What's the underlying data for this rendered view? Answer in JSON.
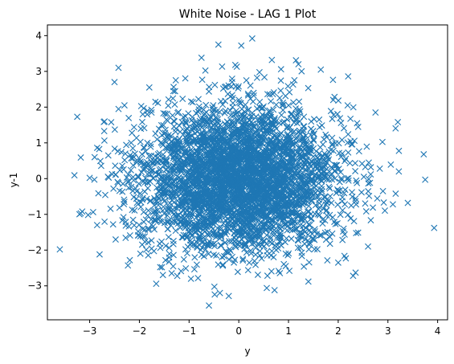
{
  "chart_data": {
    "type": "scatter",
    "title": "White Noise - LAG 1 Plot",
    "xlabel": "y",
    "ylabel": "y-1",
    "xlim": [
      -3.85,
      4.2
    ],
    "ylim": [
      -3.95,
      4.3
    ],
    "x_ticks": [
      -3,
      -2,
      -1,
      0,
      1,
      2,
      3,
      4
    ],
    "y_ticks": [
      -3,
      -2,
      -1,
      0,
      1,
      2,
      3,
      4
    ],
    "grid": false,
    "marker": "x",
    "color": "#1f77b4",
    "series": [
      {
        "distribution": "standard-normal white noise, lag-1 pairs",
        "n_points": 4000,
        "outliers": [
          {
            "x": 0.27,
            "y": 3.92
          },
          {
            "x": -0.41,
            "y": 3.75
          },
          {
            "x": 0.05,
            "y": 3.72
          },
          {
            "x": -2.42,
            "y": 3.1
          },
          {
            "x": -0.75,
            "y": 3.38
          },
          {
            "x": 1.15,
            "y": 3.31
          },
          {
            "x": 1.2,
            "y": 3.2
          },
          {
            "x": -0.07,
            "y": 3.18
          },
          {
            "x": -0.04,
            "y": 3.13
          },
          {
            "x": 0.85,
            "y": 3.06
          },
          {
            "x": -2.5,
            "y": 2.7
          },
          {
            "x": 2.2,
            "y": 2.86
          },
          {
            "x": -3.25,
            "y": 1.73
          },
          {
            "x": -2.3,
            "y": 2.05
          },
          {
            "x": 3.72,
            "y": 0.68
          },
          {
            "x": 3.75,
            "y": -0.03
          },
          {
            "x": 3.1,
            "y": -0.72
          },
          {
            "x": 3.4,
            "y": -0.68
          },
          {
            "x": 3.93,
            "y": -1.38
          },
          {
            "x": -3.6,
            "y": -1.98
          },
          {
            "x": -3.15,
            "y": -0.92
          },
          {
            "x": -3.18,
            "y": -0.97
          },
          {
            "x": -2.8,
            "y": -2.12
          },
          {
            "x": -2.23,
            "y": -2.43
          },
          {
            "x": -0.6,
            "y": -3.55
          },
          {
            "x": 0.72,
            "y": -3.12
          },
          {
            "x": 2.35,
            "y": -2.63
          },
          {
            "x": 2.3,
            "y": -2.72
          },
          {
            "x": 1.4,
            "y": -2.88
          },
          {
            "x": -0.38,
            "y": -3.2
          },
          {
            "x": 3.2,
            "y": 1.58
          },
          {
            "x": 2.75,
            "y": 1.85
          },
          {
            "x": 2.6,
            "y": -1.9
          },
          {
            "x": 3.22,
            "y": 0.2
          },
          {
            "x": 1.65,
            "y": 3.05
          },
          {
            "x": -1.8,
            "y": 2.55
          },
          {
            "x": -1.35,
            "y": -2.65
          },
          {
            "x": -2.9,
            "y": 0.6
          },
          {
            "x": -2.85,
            "y": -1.3
          },
          {
            "x": -1.98,
            "y": -2.1
          },
          {
            "x": 2.9,
            "y": -0.35
          },
          {
            "x": 2.0,
            "y": -2.35
          },
          {
            "x": 1.9,
            "y": 2.2
          },
          {
            "x": -3.0,
            "y": 0.02
          },
          {
            "x": -2.7,
            "y": 1.6
          }
        ]
      }
    ]
  }
}
